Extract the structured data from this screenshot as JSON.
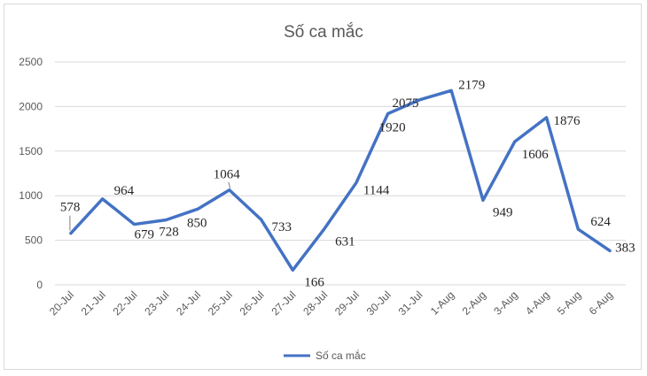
{
  "chart_data": {
    "type": "line",
    "title": "Số ca mắc",
    "categories": [
      "20-Jul",
      "21-Jul",
      "22-Jul",
      "23-Jul",
      "24-Jul",
      "25-Jul",
      "26-Jul",
      "27-Jul",
      "28-Jul",
      "29-Jul",
      "30-Jul",
      "31-Jul",
      "1-Aug",
      "2-Aug",
      "3-Aug",
      "4-Aug",
      "5-Aug",
      "6-Aug"
    ],
    "series": [
      {
        "name": "Số ca mắc",
        "values": [
          578,
          964,
          679,
          728,
          850,
          1064,
          733,
          166,
          631,
          1144,
          1920,
          2075,
          2179,
          949,
          1606,
          1876,
          624,
          383
        ],
        "color": "#4472c4"
      }
    ],
    "ylim": [
      0,
      2500
    ],
    "yticks": [
      0,
      500,
      1000,
      1500,
      2000,
      2500
    ],
    "grid": true,
    "legend": "bottom"
  }
}
